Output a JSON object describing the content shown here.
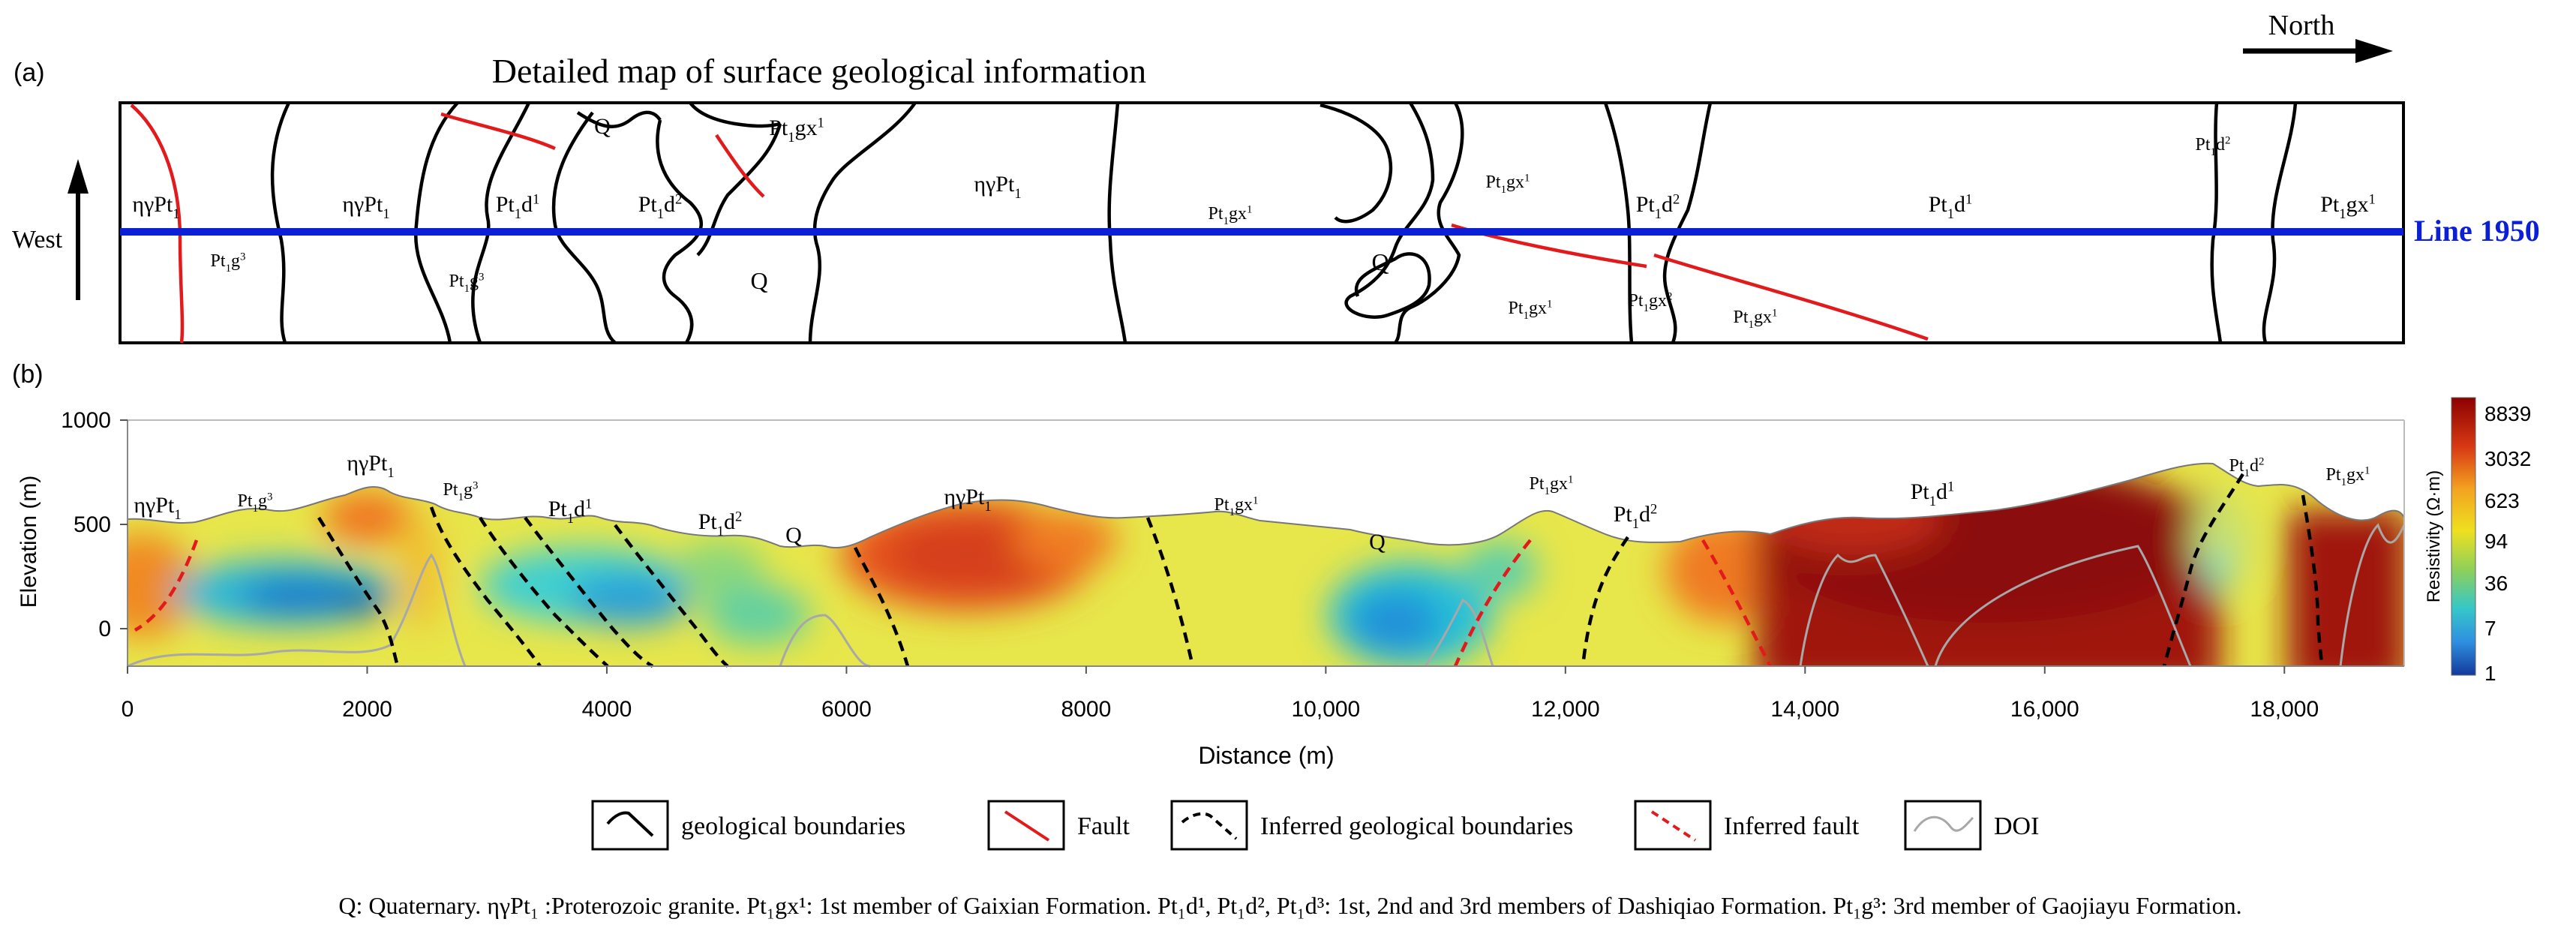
{
  "panel_a": {
    "label": "(a)",
    "title": "Detailed map of surface geological information",
    "north_label": "North",
    "west_label": "West",
    "line_label": "Line 1950",
    "units_above": [
      {
        "base": "ηγPt",
        "sub": "1",
        "sup": ""
      },
      {
        "base": "ηγPt",
        "sub": "1",
        "sup": ""
      },
      {
        "base": "Pt",
        "sub": "1",
        "sup": "",
        "suffix": "d",
        "sup2": "1"
      },
      {
        "base": "Pt",
        "sub": "1",
        "sup": "",
        "suffix": "d",
        "sup2": "2"
      },
      {
        "base": "Q",
        "sub": "",
        "sup": ""
      },
      {
        "base": "Pt",
        "sub": "1",
        "suffix": "gx",
        "sup2": "1"
      },
      {
        "base": "ηγPt",
        "sub": "1",
        "sup": ""
      },
      {
        "base": "Pt",
        "sub": "1",
        "suffix": "gx",
        "sup2": "1"
      },
      {
        "base": "Pt",
        "sub": "1",
        "suffix": "gx",
        "sup2": "1"
      },
      {
        "base": "Pt",
        "sub": "1",
        "suffix": "d",
        "sup2": "2"
      },
      {
        "base": "Pt",
        "sub": "1",
        "suffix": "d",
        "sup2": "1"
      },
      {
        "base": "Pt",
        "sub": "1",
        "suffix": "d",
        "sup2": "2"
      },
      {
        "base": "Pt",
        "sub": "1",
        "suffix": "gx",
        "sup2": "1"
      }
    ],
    "units_below": [
      {
        "base": "Pt",
        "sub": "1",
        "suffix": "g",
        "sup2": "3"
      },
      {
        "base": "Pt",
        "sub": "1",
        "suffix": "g",
        "sup2": "3"
      },
      {
        "base": "Q",
        "sub": "",
        "suffix": "",
        "sup2": ""
      },
      {
        "base": "Q",
        "sub": "",
        "suffix": "",
        "sup2": ""
      },
      {
        "base": "Pt",
        "sub": "1",
        "suffix": "gx",
        "sup2": "1"
      },
      {
        "base": "Pt",
        "sub": "1",
        "suffix": "gx",
        "sup2": "2"
      },
      {
        "base": "Pt",
        "sub": "1",
        "suffix": "gx",
        "sup2": "1"
      }
    ]
  },
  "panel_b": {
    "label": "(b)",
    "ylabel": "Elevation (m)",
    "xlabel": "Distance (m)",
    "y_ticks": [
      "1000",
      "500",
      "0"
    ],
    "x_ticks": [
      "0",
      "2000",
      "4000",
      "6000",
      "8000",
      "10,000",
      "12,000",
      "14,000",
      "16,000",
      "18,000"
    ],
    "colorbar_title": "Resistivity (Ω·m)",
    "colorbar_ticks": [
      "8839",
      "3032",
      "623",
      "94",
      "36",
      "7",
      "1"
    ],
    "section_labels": [
      {
        "base": "ηγPt",
        "sub": "1",
        "suffix": "",
        "sup2": ""
      },
      {
        "base": "Pt",
        "sub": "1",
        "suffix": "g",
        "sup2": "3"
      },
      {
        "base": "ηγPt",
        "sub": "1",
        "suffix": "",
        "sup2": ""
      },
      {
        "base": "Pt",
        "sub": "1",
        "suffix": "g",
        "sup2": "3"
      },
      {
        "base": "Pt",
        "sub": "1",
        "suffix": "d",
        "sup2": "1"
      },
      {
        "base": "Pt",
        "sub": "1",
        "suffix": "d",
        "sup2": "2"
      },
      {
        "base": "Q",
        "sub": "",
        "suffix": "",
        "sup2": ""
      },
      {
        "base": "ηγPt",
        "sub": "1",
        "suffix": "",
        "sup2": ""
      },
      {
        "base": "Pt",
        "sub": "1",
        "suffix": "gx",
        "sup2": "1"
      },
      {
        "base": "Q",
        "sub": "",
        "suffix": "",
        "sup2": ""
      },
      {
        "base": "Pt",
        "sub": "1",
        "suffix": "gx",
        "sup2": "1"
      },
      {
        "base": "Pt",
        "sub": "1",
        "suffix": "d",
        "sup2": "2"
      },
      {
        "base": "Pt",
        "sub": "1",
        "suffix": "d",
        "sup2": "1"
      },
      {
        "base": "Pt",
        "sub": "1",
        "suffix": "d",
        "sup2": "2"
      },
      {
        "base": "Pt",
        "sub": "1",
        "suffix": "gx",
        "sup2": "1"
      }
    ]
  },
  "legend": [
    {
      "label": "geological boundaries",
      "icon": "solid-black-line-icon"
    },
    {
      "label": "Fault",
      "icon": "solid-red-line-icon"
    },
    {
      "label": "Inferred geological boundaries",
      "icon": "dashed-black-line-icon"
    },
    {
      "label": "Inferred fault",
      "icon": "dashed-red-line-icon"
    },
    {
      "label": "DOI",
      "icon": "grey-curve-icon"
    }
  ],
  "caption": "Q: Quaternary. ηγPt₁ :Proterozoic granite. Pt₁gx¹: 1st member of Gaixian Formation. Pt₁d¹, Pt₁d², Pt₁d³: 1st, 2nd and 3rd members of Dashiqiao Formation. Pt₁g³:  3rd member of Gaojiayu Formation.",
  "colors": {
    "line": "#0a1fd6",
    "fault": "#e31a1c",
    "boundary": "#000000",
    "doi": "#a8a8a8"
  }
}
